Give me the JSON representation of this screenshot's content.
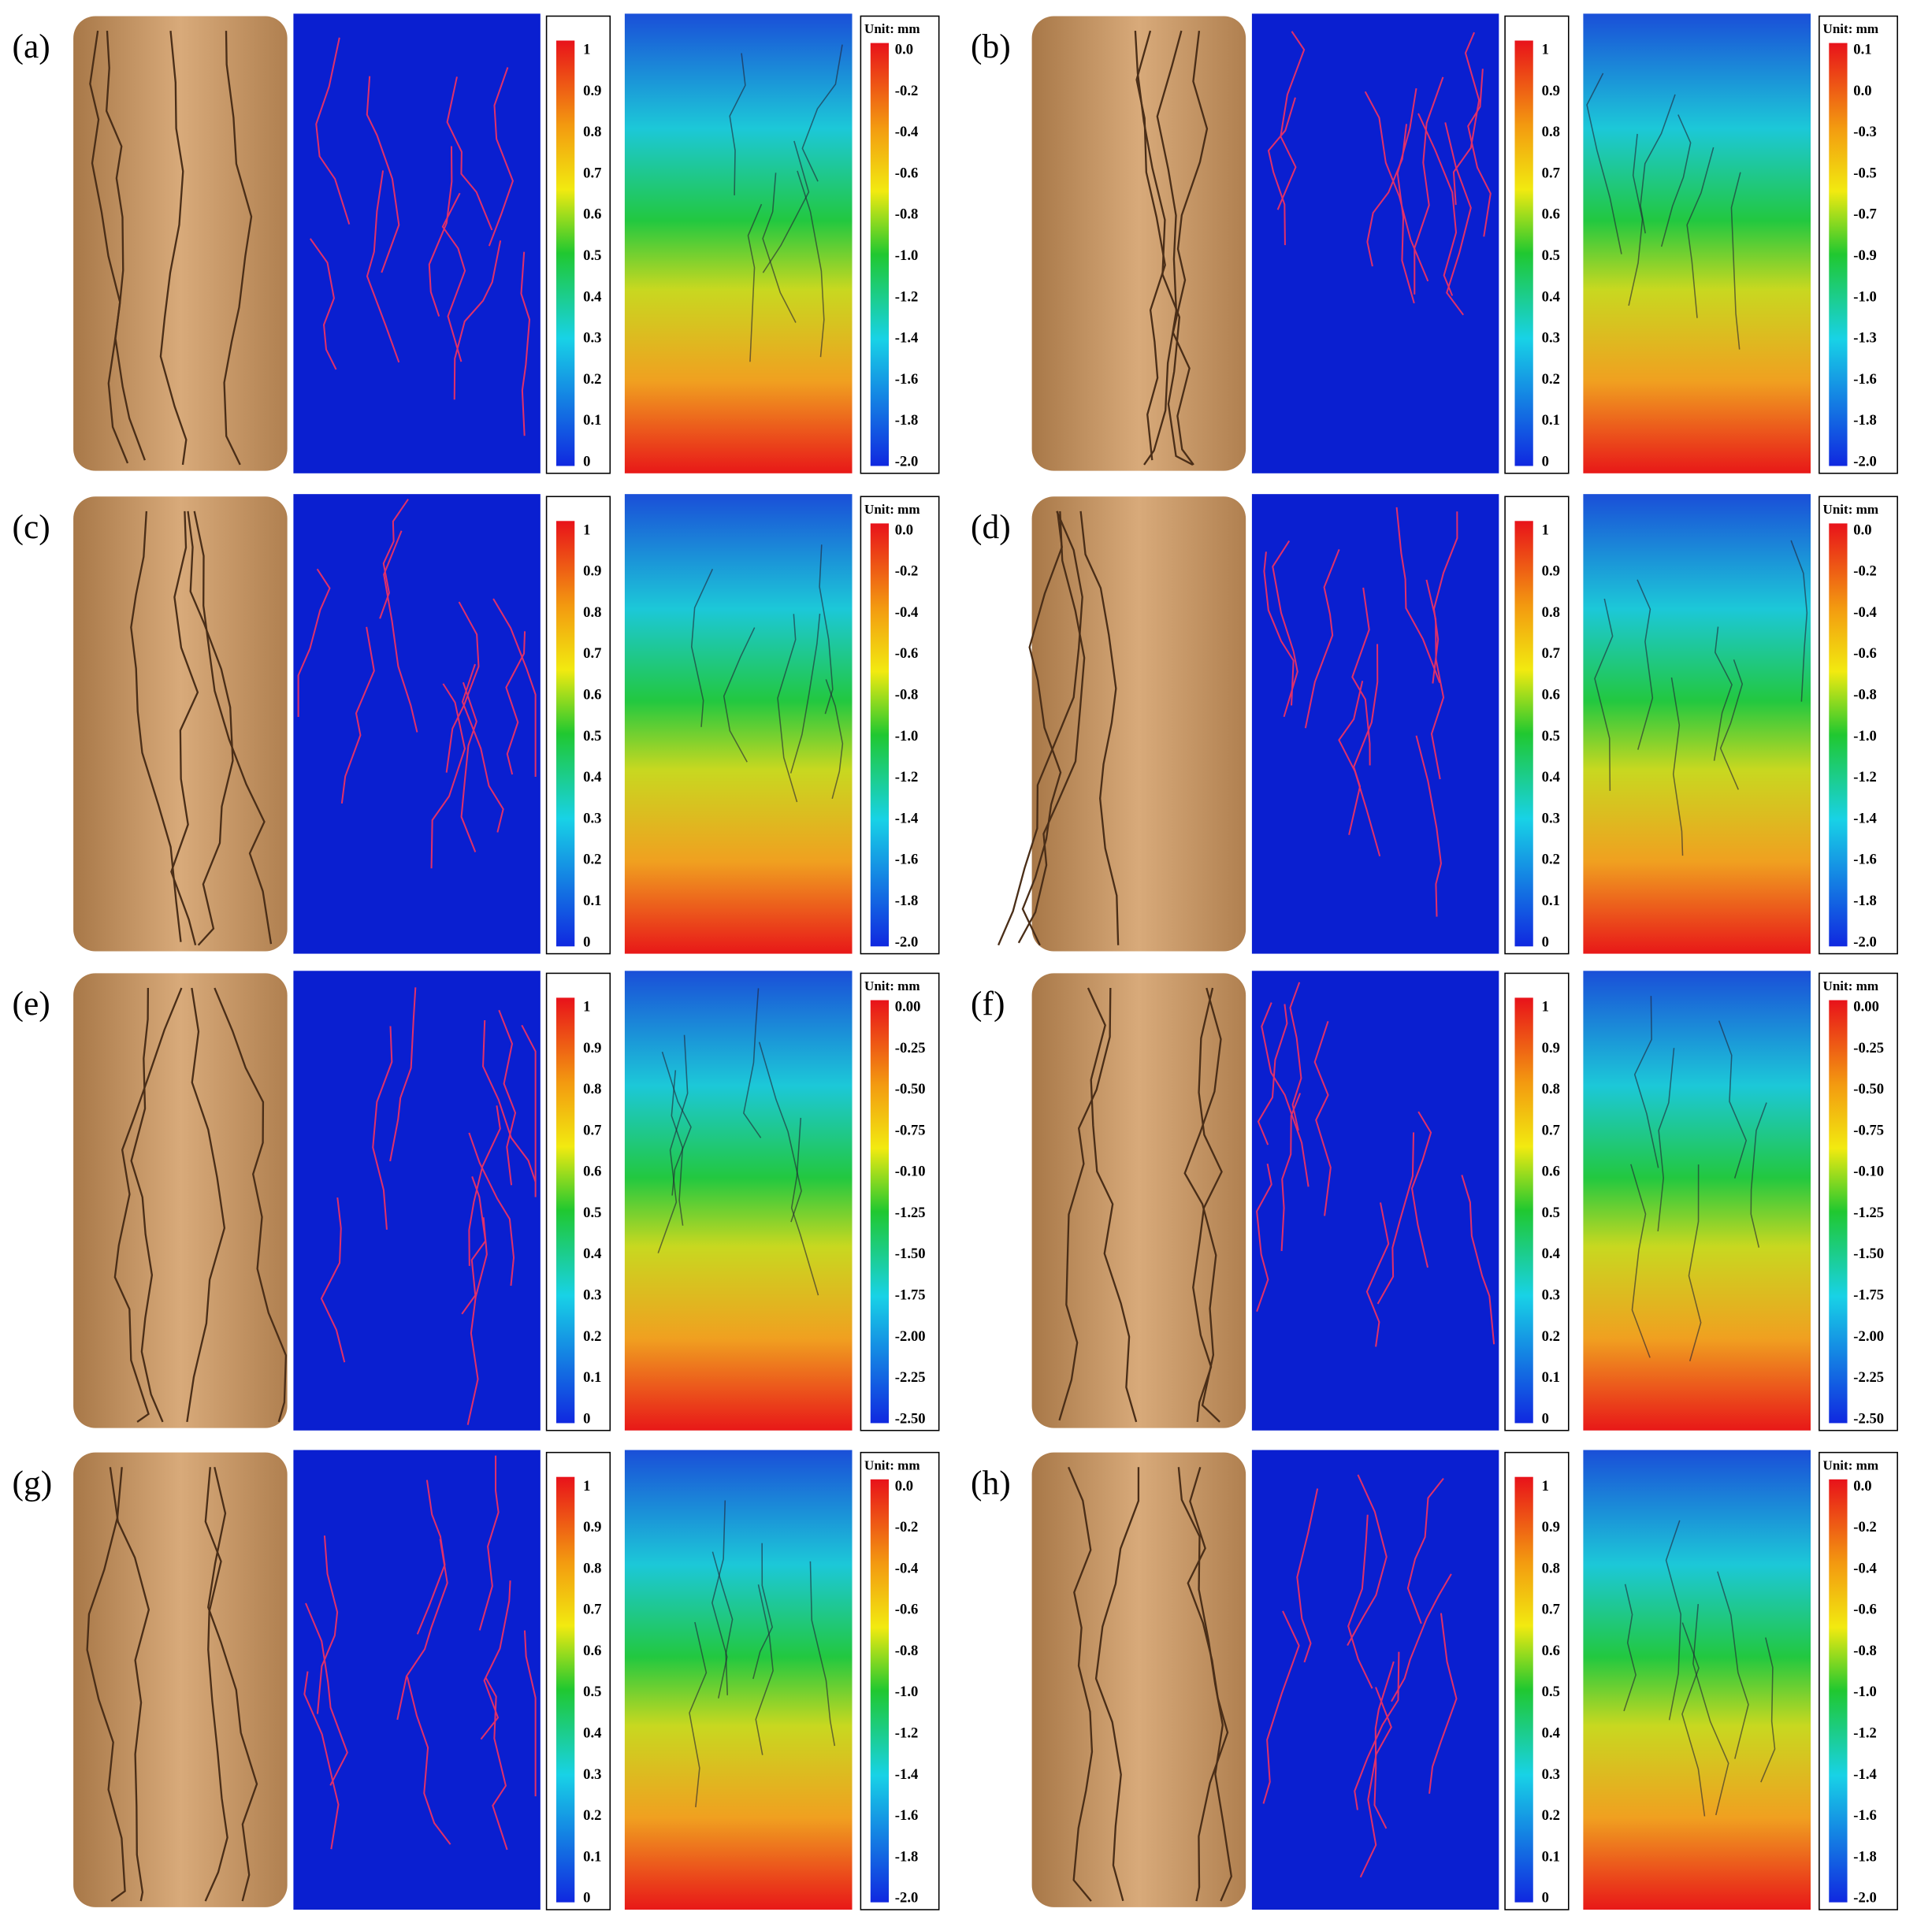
{
  "panels": [
    {
      "label": "(a)",
      "damage_ticks": [
        "1",
        "0.9",
        "0.8",
        "0.7",
        "0.6",
        "0.5",
        "0.4",
        "0.3",
        "0.2",
        "0.1",
        "0"
      ],
      "unit": "Unit: mm",
      "disp_ticks": [
        "0.0",
        "-0.2",
        "-0.4",
        "-0.6",
        "-0.8",
        "-1.0",
        "-1.2",
        "-1.4",
        "-1.6",
        "-1.8",
        "-2.0"
      ]
    },
    {
      "label": "(b)",
      "damage_ticks": [
        "1",
        "0.9",
        "0.8",
        "0.7",
        "0.6",
        "0.5",
        "0.4",
        "0.3",
        "0.2",
        "0.1",
        "0"
      ],
      "unit": "Unit: mm",
      "disp_ticks": [
        "0.1",
        "0.0",
        "-0.3",
        "-0.5",
        "-0.7",
        "-0.9",
        "-1.0",
        "-1.3",
        "-1.6",
        "-1.8",
        "-2.0"
      ]
    },
    {
      "label": "(c)",
      "damage_ticks": [
        "1",
        "0.9",
        "0.8",
        "0.7",
        "0.6",
        "0.5",
        "0.4",
        "0.3",
        "0.2",
        "0.1",
        "0"
      ],
      "unit": "Unit: mm",
      "disp_ticks": [
        "0.0",
        "-0.2",
        "-0.4",
        "-0.6",
        "-0.8",
        "-1.0",
        "-1.2",
        "-1.4",
        "-1.6",
        "-1.8",
        "-2.0"
      ]
    },
    {
      "label": "(d)",
      "damage_ticks": [
        "1",
        "0.9",
        "0.8",
        "0.7",
        "0.6",
        "0.5",
        "0.4",
        "0.3",
        "0.2",
        "0.1",
        "0"
      ],
      "unit": "Unit: mm",
      "disp_ticks": [
        "0.0",
        "-0.2",
        "-0.4",
        "-0.6",
        "-0.8",
        "-1.0",
        "-1.2",
        "-1.4",
        "-1.6",
        "-1.8",
        "-2.0"
      ]
    },
    {
      "label": "(e)",
      "damage_ticks": [
        "1",
        "0.9",
        "0.8",
        "0.7",
        "0.6",
        "0.5",
        "0.4",
        "0.3",
        "0.2",
        "0.1",
        "0"
      ],
      "unit": "Unit: mm",
      "disp_ticks": [
        "0.00",
        "-0.25",
        "-0.50",
        "-0.75",
        "-0.10",
        "-1.25",
        "-1.50",
        "-1.75",
        "-2.00",
        "-2.25",
        "-2.50"
      ]
    },
    {
      "label": "(f)",
      "damage_ticks": [
        "1",
        "0.9",
        "0.8",
        "0.7",
        "0.6",
        "0.5",
        "0.4",
        "0.3",
        "0.2",
        "0.1",
        "0"
      ],
      "unit": "Unit: mm",
      "disp_ticks": [
        "0.00",
        "-0.25",
        "-0.50",
        "-0.75",
        "-0.10",
        "-1.25",
        "-1.50",
        "-1.75",
        "-2.00",
        "-2.25",
        "-2.50"
      ]
    },
    {
      "label": "(g)",
      "damage_ticks": [
        "1",
        "0.9",
        "0.8",
        "0.7",
        "0.6",
        "0.5",
        "0.4",
        "0.3",
        "0.2",
        "0.1",
        "0"
      ],
      "unit": "Unit: mm",
      "disp_ticks": [
        "0.0",
        "-0.2",
        "-0.4",
        "-0.6",
        "-0.8",
        "-1.0",
        "-1.2",
        "-1.4",
        "-1.6",
        "-1.8",
        "-2.0"
      ]
    },
    {
      "label": "(h)",
      "damage_ticks": [
        "1",
        "0.9",
        "0.8",
        "0.7",
        "0.6",
        "0.5",
        "0.4",
        "0.3",
        "0.2",
        "0.1",
        "0"
      ],
      "unit": "Unit: mm",
      "disp_ticks": [
        "0.0",
        "-0.2",
        "-0.4",
        "-0.6",
        "-0.8",
        "-1.0",
        "-1.2",
        "-1.4",
        "-1.6",
        "-1.8",
        "-2.0"
      ]
    }
  ]
}
